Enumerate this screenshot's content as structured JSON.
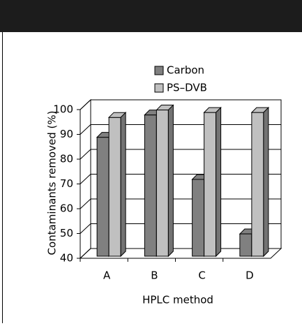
{
  "chart_data": {
    "type": "bar3d",
    "categories": [
      "A",
      "B",
      "C",
      "D"
    ],
    "series": [
      {
        "name": "Carbon",
        "color": "#808080",
        "values": [
          88,
          97,
          71,
          49
        ]
      },
      {
        "name": "PS–DVB",
        "color": "#c0c0c0",
        "values": [
          96,
          99,
          98,
          98
        ]
      }
    ],
    "ylim": [
      40,
      100
    ],
    "yticks": [
      40,
      50,
      60,
      70,
      80,
      90,
      100
    ],
    "ylabel": "Contaminants removed (%)",
    "xlabel": "HPLC method",
    "grid": true
  }
}
